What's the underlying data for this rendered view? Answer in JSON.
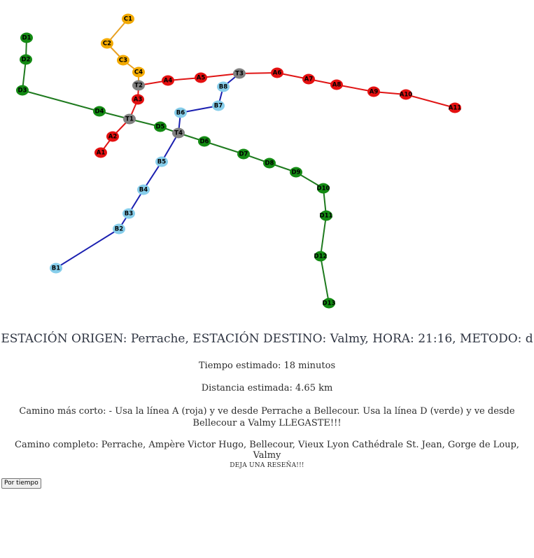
{
  "map": {
    "line_colors": {
      "A": "#e01515",
      "B": "#1a1fb0",
      "C": "#e8a020",
      "D": "#1e7a1e"
    },
    "node_colors": {
      "A": "#e41010",
      "B": "#87ceeb",
      "C": "#f2a900",
      "D": "#138a13",
      "T": "#808080"
    },
    "stations": [
      {
        "id": "A1",
        "group": "A"
      },
      {
        "id": "A2",
        "group": "A"
      },
      {
        "id": "A3",
        "group": "A"
      },
      {
        "id": "A4",
        "group": "A"
      },
      {
        "id": "A5",
        "group": "A"
      },
      {
        "id": "A6",
        "group": "A"
      },
      {
        "id": "A7",
        "group": "A"
      },
      {
        "id": "A8",
        "group": "A"
      },
      {
        "id": "A9",
        "group": "A"
      },
      {
        "id": "A10",
        "group": "A"
      },
      {
        "id": "A11",
        "group": "A"
      },
      {
        "id": "B1",
        "group": "B"
      },
      {
        "id": "B2",
        "group": "B"
      },
      {
        "id": "B3",
        "group": "B"
      },
      {
        "id": "B4",
        "group": "B"
      },
      {
        "id": "B5",
        "group": "B"
      },
      {
        "id": "B6",
        "group": "B"
      },
      {
        "id": "B7",
        "group": "B"
      },
      {
        "id": "B8",
        "group": "B"
      },
      {
        "id": "C1",
        "group": "C"
      },
      {
        "id": "C2",
        "group": "C"
      },
      {
        "id": "C3",
        "group": "C"
      },
      {
        "id": "C4",
        "group": "C"
      },
      {
        "id": "D1",
        "group": "D"
      },
      {
        "id": "D2",
        "group": "D"
      },
      {
        "id": "D3",
        "group": "D"
      },
      {
        "id": "D4",
        "group": "D"
      },
      {
        "id": "D5",
        "group": "D"
      },
      {
        "id": "D6",
        "group": "D"
      },
      {
        "id": "D7",
        "group": "D"
      },
      {
        "id": "D8",
        "group": "D"
      },
      {
        "id": "D9",
        "group": "D"
      },
      {
        "id": "D10",
        "group": "D"
      },
      {
        "id": "D11",
        "group": "D"
      },
      {
        "id": "D12",
        "group": "D"
      },
      {
        "id": "D13",
        "group": "D"
      },
      {
        "id": "T1",
        "group": "T"
      },
      {
        "id": "T2",
        "group": "T"
      },
      {
        "id": "T3",
        "group": "T"
      },
      {
        "id": "T4",
        "group": "T"
      }
    ],
    "edges": [
      {
        "line": "A",
        "from": "A1",
        "to": "A2"
      },
      {
        "line": "A",
        "from": "A2",
        "to": "T1"
      },
      {
        "line": "A",
        "from": "T1",
        "to": "A3"
      },
      {
        "line": "A",
        "from": "A3",
        "to": "T2"
      },
      {
        "line": "A",
        "from": "T2",
        "to": "A4"
      },
      {
        "line": "A",
        "from": "A4",
        "to": "A5"
      },
      {
        "line": "A",
        "from": "A5",
        "to": "T3"
      },
      {
        "line": "A",
        "from": "T3",
        "to": "A6"
      },
      {
        "line": "A",
        "from": "A6",
        "to": "A7"
      },
      {
        "line": "A",
        "from": "A7",
        "to": "A8"
      },
      {
        "line": "A",
        "from": "A8",
        "to": "A9"
      },
      {
        "line": "A",
        "from": "A9",
        "to": "A10"
      },
      {
        "line": "A",
        "from": "A10",
        "to": "A11"
      },
      {
        "line": "B",
        "from": "B1",
        "to": "B2"
      },
      {
        "line": "B",
        "from": "B2",
        "to": "B3"
      },
      {
        "line": "B",
        "from": "B3",
        "to": "B4"
      },
      {
        "line": "B",
        "from": "B4",
        "to": "B5"
      },
      {
        "line": "B",
        "from": "B5",
        "to": "T4"
      },
      {
        "line": "B",
        "from": "T4",
        "to": "B6"
      },
      {
        "line": "B",
        "from": "B6",
        "to": "B7"
      },
      {
        "line": "B",
        "from": "B7",
        "to": "B8"
      },
      {
        "line": "B",
        "from": "B8",
        "to": "T3"
      },
      {
        "line": "C",
        "from": "C1",
        "to": "C2"
      },
      {
        "line": "C",
        "from": "C2",
        "to": "C3"
      },
      {
        "line": "C",
        "from": "C3",
        "to": "C4"
      },
      {
        "line": "C",
        "from": "C4",
        "to": "T2"
      },
      {
        "line": "D",
        "from": "D1",
        "to": "D2"
      },
      {
        "line": "D",
        "from": "D2",
        "to": "D3"
      },
      {
        "line": "D",
        "from": "D3",
        "to": "D4"
      },
      {
        "line": "D",
        "from": "D4",
        "to": "T1"
      },
      {
        "line": "D",
        "from": "T1",
        "to": "D5"
      },
      {
        "line": "D",
        "from": "D5",
        "to": "T4"
      },
      {
        "line": "D",
        "from": "T4",
        "to": "D6"
      },
      {
        "line": "D",
        "from": "D6",
        "to": "D7"
      },
      {
        "line": "D",
        "from": "D7",
        "to": "D8"
      },
      {
        "line": "D",
        "from": "D8",
        "to": "D9"
      },
      {
        "line": "D",
        "from": "D9",
        "to": "D10"
      },
      {
        "line": "D",
        "from": "D10",
        "to": "D11"
      },
      {
        "line": "D",
        "from": "D11",
        "to": "D12"
      },
      {
        "line": "D",
        "from": "D12",
        "to": "D13"
      }
    ]
  },
  "route": {
    "summary": "ESTACIÓN ORIGEN: Perrache, ESTACIÓN DESTINO: Valmy, HORA: 21:16, METODO: d",
    "estimated_time": "Tiempo estimado: 18 minutos",
    "estimated_distance": "Distancia estimada: 4.65 km",
    "shortest_path": "Camino más corto: - Usa la línea A (roja) y ve desde Perrache a Bellecour. Usa la línea D (verde) y ve desde Bellecour a Valmy LLEGASTE!!!",
    "complete_path": "Camino completo: Perrache, Ampère Victor Hugo, Bellecour, Vieux Lyon Cathédrale St. Jean, Gorge de Loup, Valmy",
    "review_prompt": "DEJA UNA RESEÑA!!!"
  },
  "controls": {
    "time_button_label": "Por tiempo"
  }
}
